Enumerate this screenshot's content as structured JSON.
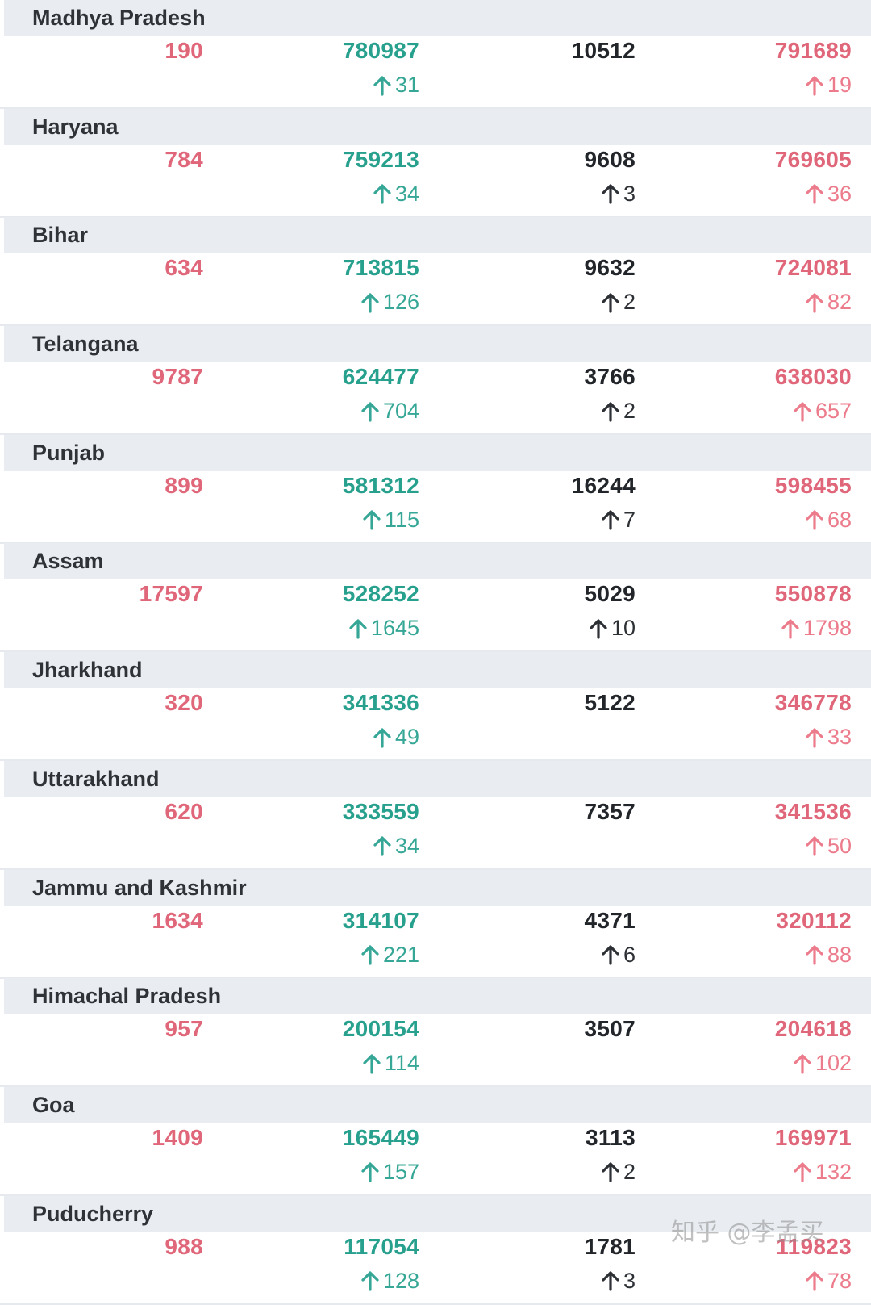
{
  "colors": {
    "active": "#e0667a",
    "recovered": "#27a08d",
    "deaths": "#222529",
    "header_bg": "#e9edf2"
  },
  "arrow_icon": "arrow-up-icon",
  "states": [
    {
      "name": "Madhya Pradesh",
      "active": "190",
      "recovered": "780987",
      "recovered_delta": "31",
      "deaths": "10512",
      "deaths_delta": "",
      "total": "791689",
      "total_delta": "19"
    },
    {
      "name": "Haryana",
      "active": "784",
      "recovered": "759213",
      "recovered_delta": "34",
      "deaths": "9608",
      "deaths_delta": "3",
      "total": "769605",
      "total_delta": "36"
    },
    {
      "name": "Bihar",
      "active": "634",
      "recovered": "713815",
      "recovered_delta": "126",
      "deaths": "9632",
      "deaths_delta": "2",
      "total": "724081",
      "total_delta": "82"
    },
    {
      "name": "Telangana",
      "active": "9787",
      "recovered": "624477",
      "recovered_delta": "704",
      "deaths": "3766",
      "deaths_delta": "2",
      "total": "638030",
      "total_delta": "657"
    },
    {
      "name": "Punjab",
      "active": "899",
      "recovered": "581312",
      "recovered_delta": "115",
      "deaths": "16244",
      "deaths_delta": "7",
      "total": "598455",
      "total_delta": "68"
    },
    {
      "name": "Assam",
      "active": "17597",
      "recovered": "528252",
      "recovered_delta": "1645",
      "deaths": "5029",
      "deaths_delta": "10",
      "total": "550878",
      "total_delta": "1798"
    },
    {
      "name": "Jharkhand",
      "active": "320",
      "recovered": "341336",
      "recovered_delta": "49",
      "deaths": "5122",
      "deaths_delta": "",
      "total": "346778",
      "total_delta": "33"
    },
    {
      "name": "Uttarakhand",
      "active": "620",
      "recovered": "333559",
      "recovered_delta": "34",
      "deaths": "7357",
      "deaths_delta": "",
      "total": "341536",
      "total_delta": "50"
    },
    {
      "name": "Jammu and Kashmir",
      "active": "1634",
      "recovered": "314107",
      "recovered_delta": "221",
      "deaths": "4371",
      "deaths_delta": "6",
      "total": "320112",
      "total_delta": "88"
    },
    {
      "name": "Himachal Pradesh",
      "active": "957",
      "recovered": "200154",
      "recovered_delta": "114",
      "deaths": "3507",
      "deaths_delta": "",
      "total": "204618",
      "total_delta": "102"
    },
    {
      "name": "Goa",
      "active": "1409",
      "recovered": "165449",
      "recovered_delta": "157",
      "deaths": "3113",
      "deaths_delta": "2",
      "total": "169971",
      "total_delta": "132"
    },
    {
      "name": "Puducherry",
      "active": "988",
      "recovered": "117054",
      "recovered_delta": "128",
      "deaths": "1781",
      "deaths_delta": "3",
      "total": "119823",
      "total_delta": "78"
    }
  ],
  "watermark": "知乎 @李孟买"
}
